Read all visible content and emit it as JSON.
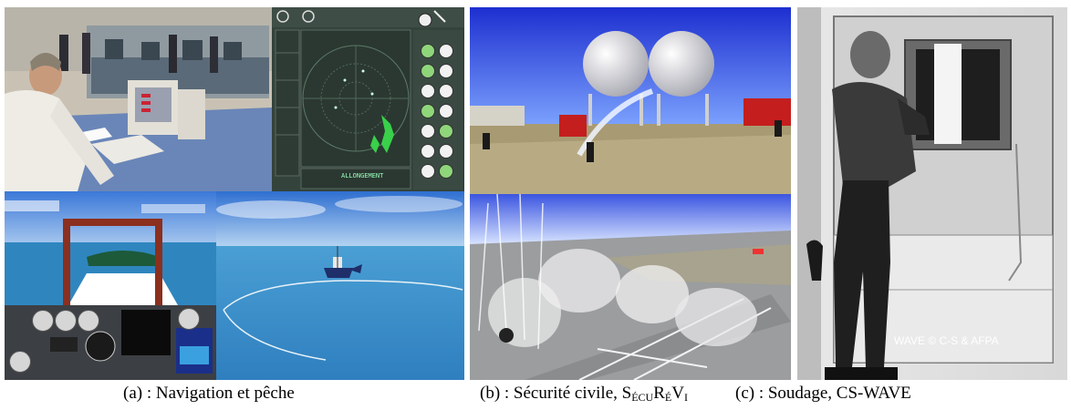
{
  "captions": {
    "a": "(a) : Navigation et pêche",
    "b_prefix": "(b) : Sécurité civile, ",
    "b_s": "S",
    "b_ecu": "ÉCU",
    "b_r": "R",
    "b_e": "É",
    "b_v": "V",
    "b_i": "I",
    "c": "(c) : Soudage, CS-WAVE"
  },
  "watermark": "WAVE © C-S & AFPA",
  "radar": {
    "title": "ALLONGEMENT"
  }
}
